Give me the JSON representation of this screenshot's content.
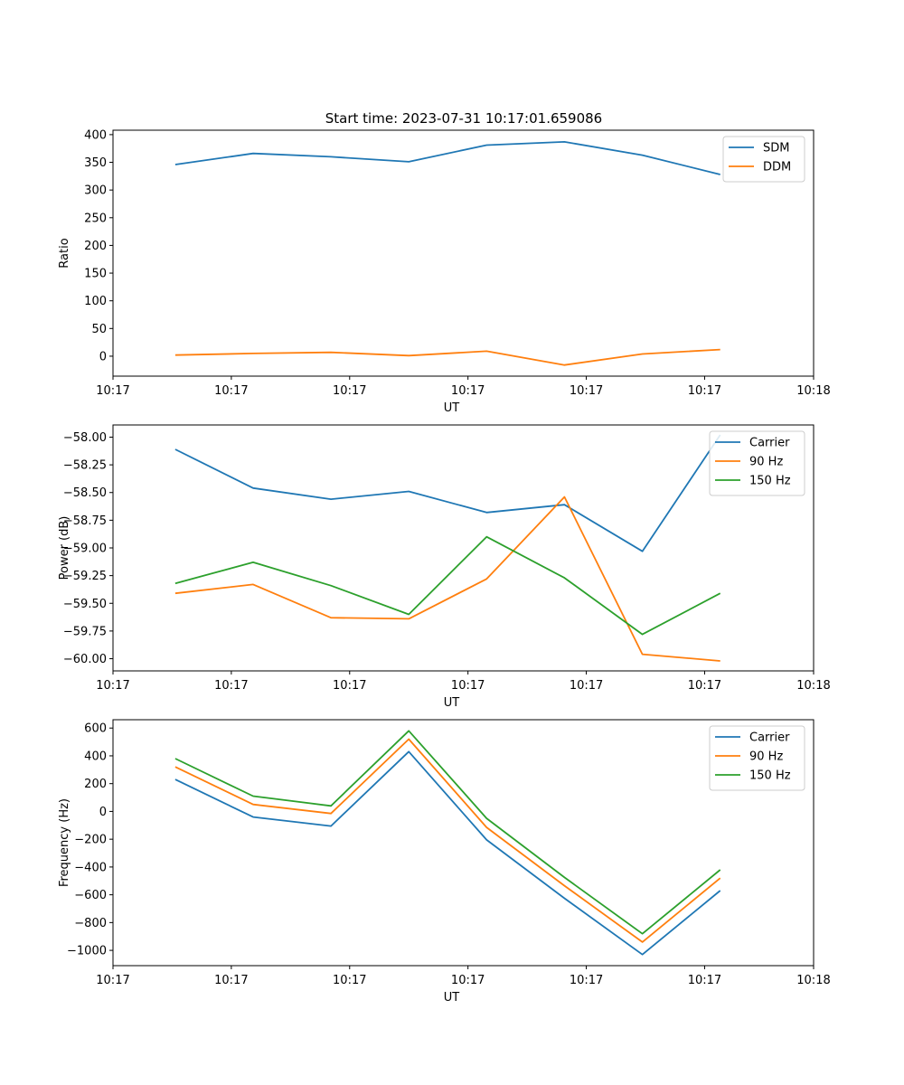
{
  "figure": {
    "title": "Start time: 2023-07-31 10:17:01.659086"
  },
  "chart_data": [
    {
      "type": "line",
      "title": "Start time: 2023-07-31 10:17:01.659086",
      "xlabel": "UT",
      "ylabel": "Ratio",
      "x": [
        1,
        2,
        3,
        4,
        5,
        6,
        7,
        8
      ],
      "xlim": [
        0.2,
        9.2
      ],
      "x_ticks": [
        0.2,
        1.72,
        3.24,
        4.76,
        6.28,
        7.8,
        9.2
      ],
      "x_tick_labels": [
        "10:17",
        "10:17",
        "10:17",
        "10:17",
        "10:17",
        "10:17",
        "10:18"
      ],
      "ylim": [
        -36,
        408
      ],
      "y_ticks": [
        0,
        50,
        100,
        150,
        200,
        250,
        300,
        350,
        400
      ],
      "y_tick_labels": [
        "0",
        "50",
        "100",
        "150",
        "200",
        "250",
        "300",
        "350",
        "400"
      ],
      "legend": "top-right",
      "series": [
        {
          "name": "SDM",
          "color": "#1f77b4",
          "values": [
            346,
            366,
            360,
            351,
            381,
            387,
            363,
            328
          ]
        },
        {
          "name": "DDM",
          "color": "#ff7f0e",
          "values": [
            2,
            5,
            7,
            1,
            9,
            -16,
            4,
            12
          ]
        }
      ]
    },
    {
      "type": "line",
      "title": "",
      "xlabel": "UT",
      "ylabel": "Power (dB)",
      "x": [
        1,
        2,
        3,
        4,
        5,
        6,
        7,
        8
      ],
      "xlim": [
        0.2,
        9.2
      ],
      "x_ticks": [
        0.2,
        1.72,
        3.24,
        4.76,
        6.28,
        7.8,
        9.2
      ],
      "x_tick_labels": [
        "10:17",
        "10:17",
        "10:17",
        "10:17",
        "10:17",
        "10:17",
        "10:18"
      ],
      "ylim": [
        -60.11,
        -57.89
      ],
      "y_ticks": [
        -60.0,
        -59.75,
        -59.5,
        -59.25,
        -59.0,
        -58.75,
        -58.5,
        -58.25,
        -58.0
      ],
      "y_tick_labels": [
        "−60.00",
        "−59.75",
        "−59.50",
        "−59.25",
        "−59.00",
        "−58.75",
        "−58.50",
        "−58.25",
        "−58.00"
      ],
      "legend": "top-right",
      "series": [
        {
          "name": "Carrier",
          "color": "#1f77b4",
          "values": [
            -58.11,
            -58.46,
            -58.56,
            -58.49,
            -58.68,
            -58.61,
            -59.03,
            -57.98
          ]
        },
        {
          "name": "90 Hz",
          "color": "#ff7f0e",
          "values": [
            -59.41,
            -59.33,
            -59.63,
            -59.64,
            -59.28,
            -58.54,
            -59.96,
            -60.02
          ]
        },
        {
          "name": "150 Hz",
          "color": "#2ca02c",
          "values": [
            -59.32,
            -59.13,
            -59.34,
            -59.6,
            -58.9,
            -59.27,
            -59.78,
            -59.41
          ]
        }
      ]
    },
    {
      "type": "line",
      "title": "",
      "xlabel": "UT",
      "ylabel": "Frequency (Hz)",
      "x": [
        1,
        2,
        3,
        4,
        5,
        6,
        7,
        8
      ],
      "xlim": [
        0.2,
        9.2
      ],
      "x_ticks": [
        0.2,
        1.72,
        3.24,
        4.76,
        6.28,
        7.8,
        9.2
      ],
      "x_tick_labels": [
        "10:17",
        "10:17",
        "10:17",
        "10:17",
        "10:17",
        "10:17",
        "10:18"
      ],
      "ylim": [
        -1110,
        660
      ],
      "y_ticks": [
        -1000,
        -800,
        -600,
        -400,
        -200,
        0,
        200,
        400,
        600
      ],
      "y_tick_labels": [
        "−1000",
        "−800",
        "−600",
        "−400",
        "−200",
        "0",
        "200",
        "400",
        "600"
      ],
      "legend": "top-right",
      "series": [
        {
          "name": "Carrier",
          "color": "#1f77b4",
          "values": [
            230,
            -40,
            -105,
            430,
            -205,
            -625,
            -1030,
            -570
          ]
        },
        {
          "name": "90 Hz",
          "color": "#ff7f0e",
          "values": [
            320,
            50,
            -15,
            520,
            -115,
            -535,
            -940,
            -480
          ]
        },
        {
          "name": "150 Hz",
          "color": "#2ca02c",
          "values": [
            380,
            110,
            40,
            580,
            -50,
            -475,
            -880,
            -420
          ]
        }
      ]
    }
  ]
}
